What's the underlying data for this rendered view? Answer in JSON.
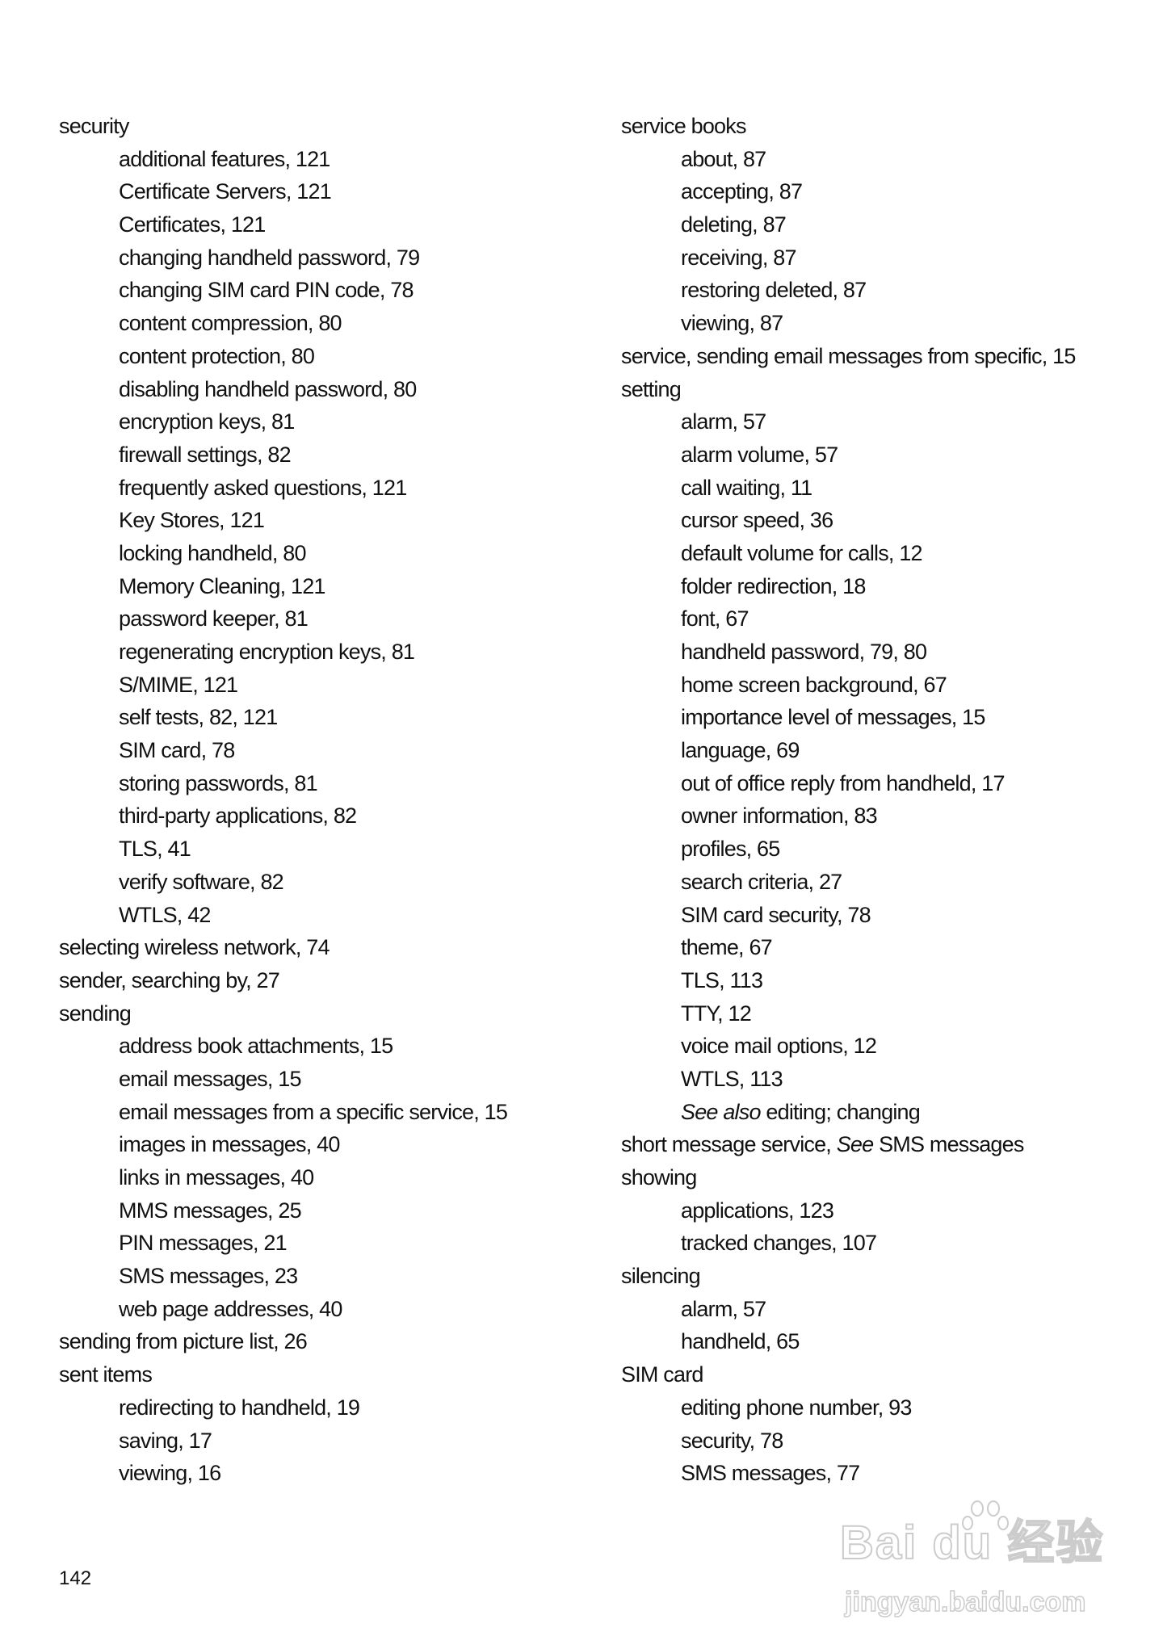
{
  "page_number": "142",
  "watermark": {
    "logo": "Bai du 经验",
    "url": "jingyan.baidu.com"
  },
  "columns": {
    "left": [
      {
        "level": 0,
        "text": "security"
      },
      {
        "level": 1,
        "text": "additional features, 121"
      },
      {
        "level": 1,
        "text": "Certificate Servers, 121"
      },
      {
        "level": 1,
        "text": "Certificates, 121"
      },
      {
        "level": 1,
        "text": "changing handheld password, 79"
      },
      {
        "level": 1,
        "text": "changing SIM card PIN code, 78"
      },
      {
        "level": 1,
        "text": "content compression, 80"
      },
      {
        "level": 1,
        "text": "content protection, 80"
      },
      {
        "level": 1,
        "text": "disabling handheld password, 80"
      },
      {
        "level": 1,
        "text": "encryption keys, 81"
      },
      {
        "level": 1,
        "text": "firewall settings, 82"
      },
      {
        "level": 1,
        "text": "frequently asked questions, 121"
      },
      {
        "level": 1,
        "text": "Key Stores, 121"
      },
      {
        "level": 1,
        "text": "locking handheld, 80"
      },
      {
        "level": 1,
        "text": "Memory Cleaning, 121"
      },
      {
        "level": 1,
        "text": "password keeper, 81"
      },
      {
        "level": 1,
        "text": "regenerating encryption keys, 81"
      },
      {
        "level": 1,
        "text": "S/MIME, 121"
      },
      {
        "level": 1,
        "text": "self tests, 82, 121"
      },
      {
        "level": 1,
        "text": "SIM card, 78"
      },
      {
        "level": 1,
        "text": "storing passwords, 81"
      },
      {
        "level": 1,
        "text": "third-party applications, 82"
      },
      {
        "level": 1,
        "text": "TLS, 41"
      },
      {
        "level": 1,
        "text": "verify software, 82"
      },
      {
        "level": 1,
        "text": "WTLS, 42"
      },
      {
        "level": 0,
        "text": "selecting wireless network, 74"
      },
      {
        "level": 0,
        "text": "sender, searching by, 27"
      },
      {
        "level": 0,
        "text": "sending"
      },
      {
        "level": 1,
        "text": "address book attachments, 15"
      },
      {
        "level": 1,
        "text": "email messages, 15"
      },
      {
        "level": 1,
        "text": "email messages from a specific service, 15"
      },
      {
        "level": 1,
        "text": "images in messages, 40"
      },
      {
        "level": 1,
        "text": "links in messages, 40"
      },
      {
        "level": 1,
        "text": "MMS messages, 25"
      },
      {
        "level": 1,
        "text": "PIN messages, 21"
      },
      {
        "level": 1,
        "text": "SMS messages, 23"
      },
      {
        "level": 1,
        "text": "web page addresses, 40"
      },
      {
        "level": 0,
        "text": "sending from picture list, 26"
      },
      {
        "level": 0,
        "text": "sent items"
      },
      {
        "level": 1,
        "text": "redirecting to handheld, 19"
      },
      {
        "level": 1,
        "text": "saving, 17"
      },
      {
        "level": 1,
        "text": "viewing, 16"
      }
    ],
    "right": [
      {
        "level": 0,
        "text": "service books"
      },
      {
        "level": 1,
        "text": "about, 87"
      },
      {
        "level": 1,
        "text": "accepting, 87"
      },
      {
        "level": 1,
        "text": "deleting, 87"
      },
      {
        "level": 1,
        "text": "receiving, 87"
      },
      {
        "level": 1,
        "text": "restoring deleted, 87"
      },
      {
        "level": 1,
        "text": "viewing, 87"
      },
      {
        "level": 0,
        "text": "service, sending email messages from specific, 15"
      },
      {
        "level": 0,
        "text": "setting"
      },
      {
        "level": 1,
        "text": "alarm, 57"
      },
      {
        "level": 1,
        "text": "alarm volume, 57"
      },
      {
        "level": 1,
        "text": "call waiting, 11"
      },
      {
        "level": 1,
        "text": "cursor speed, 36"
      },
      {
        "level": 1,
        "text": "default volume for calls, 12"
      },
      {
        "level": 1,
        "text": "folder redirection, 18"
      },
      {
        "level": 1,
        "text": "font, 67"
      },
      {
        "level": 1,
        "text": "handheld password, 79, 80"
      },
      {
        "level": 1,
        "text": "home screen background, 67"
      },
      {
        "level": 1,
        "text": "importance level of messages, 15"
      },
      {
        "level": 1,
        "text": "language, 69"
      },
      {
        "level": 1,
        "text": "out of office reply from handheld, 17"
      },
      {
        "level": 1,
        "text": "owner information, 83"
      },
      {
        "level": 1,
        "text": "profiles, 65"
      },
      {
        "level": 1,
        "text": "search criteria, 27"
      },
      {
        "level": 1,
        "text": "SIM card security, 78"
      },
      {
        "level": 1,
        "text": "theme, 67"
      },
      {
        "level": 1,
        "text": "TLS, 113"
      },
      {
        "level": 1,
        "text": "TTY, 12"
      },
      {
        "level": 1,
        "text": "voice mail options, 12"
      },
      {
        "level": 1,
        "text": "WTLS, 113"
      },
      {
        "level": 1,
        "text": "",
        "em": "See also",
        "post": " editing; changing"
      },
      {
        "level": 0,
        "text": "short message service, ",
        "em": "See",
        "post": " SMS messages"
      },
      {
        "level": 0,
        "text": "showing"
      },
      {
        "level": 1,
        "text": "applications, 123"
      },
      {
        "level": 1,
        "text": "tracked changes, 107"
      },
      {
        "level": 0,
        "text": "silencing"
      },
      {
        "level": 1,
        "text": "alarm, 57"
      },
      {
        "level": 1,
        "text": "handheld, 65"
      },
      {
        "level": 0,
        "text": "SIM card"
      },
      {
        "level": 1,
        "text": "editing phone number, 93"
      },
      {
        "level": 1,
        "text": "security, 78"
      },
      {
        "level": 1,
        "text": "SMS messages, 77"
      }
    ]
  }
}
